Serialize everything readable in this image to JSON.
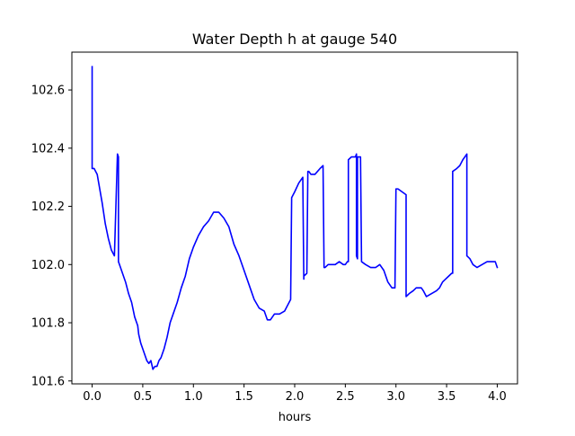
{
  "chart_data": {
    "type": "line",
    "title": "Water Depth h at gauge 540",
    "xlabel": "hours",
    "ylabel": "",
    "xlim": [
      -0.2,
      4.2
    ],
    "ylim": [
      101.59,
      102.73
    ],
    "grid": false,
    "xticks": [
      0.0,
      0.5,
      1.0,
      1.5,
      2.0,
      2.5,
      3.0,
      3.5,
      4.0
    ],
    "xtick_labels": [
      "0.0",
      "0.5",
      "1.0",
      "1.5",
      "2.0",
      "2.5",
      "3.0",
      "3.5",
      "4.0"
    ],
    "yticks": [
      101.6,
      101.8,
      102.0,
      102.2,
      102.4,
      102.6
    ],
    "ytick_labels": [
      "101.6",
      "101.8",
      "102.0",
      "102.2",
      "102.4",
      "102.6"
    ],
    "series": [
      {
        "color": "#0000ff",
        "x": [
          0.0,
          0.0,
          0.02,
          0.05,
          0.07,
          0.1,
          0.13,
          0.16,
          0.19,
          0.22,
          0.25,
          0.26,
          0.26,
          0.28,
          0.28,
          0.3,
          0.33,
          0.36,
          0.39,
          0.42,
          0.45,
          0.46,
          0.48,
          0.5,
          0.52,
          0.54,
          0.56,
          0.58,
          0.6,
          0.62,
          0.64,
          0.66,
          0.68,
          0.71,
          0.74,
          0.77,
          0.8,
          0.84,
          0.88,
          0.92,
          0.96,
          1.0,
          1.05,
          1.1,
          1.15,
          1.2,
          1.25,
          1.3,
          1.35,
          1.4,
          1.45,
          1.5,
          1.55,
          1.6,
          1.65,
          1.7,
          1.73,
          1.76,
          1.8,
          1.85,
          1.9,
          1.93,
          1.96,
          1.97,
          2.0,
          2.04,
          2.08,
          2.09,
          2.09,
          2.12,
          2.13,
          2.14,
          2.16,
          2.2,
          2.25,
          2.28,
          2.29,
          2.3,
          2.33,
          2.36,
          2.4,
          2.44,
          2.48,
          2.5,
          2.52,
          2.53,
          2.53,
          2.56,
          2.6,
          2.61,
          2.61,
          2.62,
          2.62,
          2.64,
          2.65,
          2.66,
          2.7,
          2.75,
          2.8,
          2.84,
          2.88,
          2.92,
          2.96,
          2.99,
          3.0,
          3.02,
          3.06,
          3.1,
          3.1,
          3.13,
          3.17,
          3.2,
          3.22,
          3.25,
          3.27,
          3.3,
          3.35,
          3.4,
          3.43,
          3.46,
          3.49,
          3.52,
          3.55,
          3.56,
          3.56,
          3.6,
          3.63,
          3.66,
          3.68,
          3.7,
          3.7,
          3.73,
          3.76,
          3.8,
          3.85,
          3.9,
          3.95,
          3.98,
          4.0
        ],
        "y": [
          102.68,
          102.33,
          102.33,
          102.31,
          102.27,
          102.21,
          102.14,
          102.09,
          102.05,
          102.03,
          102.38,
          102.37,
          102.01,
          101.99,
          101.99,
          101.97,
          101.94,
          101.9,
          101.87,
          101.82,
          101.79,
          101.76,
          101.73,
          101.71,
          101.69,
          101.67,
          101.66,
          101.67,
          101.64,
          101.65,
          101.65,
          101.67,
          101.68,
          101.71,
          101.75,
          101.8,
          101.83,
          101.87,
          101.92,
          101.96,
          102.02,
          102.06,
          102.1,
          102.13,
          102.15,
          102.18,
          102.18,
          102.16,
          102.13,
          102.07,
          102.03,
          101.98,
          101.93,
          101.88,
          101.85,
          101.84,
          101.81,
          101.81,
          101.83,
          101.83,
          101.84,
          101.86,
          101.88,
          102.23,
          102.25,
          102.28,
          102.3,
          101.95,
          101.96,
          101.97,
          102.32,
          102.32,
          102.31,
          102.31,
          102.33,
          102.34,
          101.99,
          101.99,
          102.0,
          102.0,
          102.0,
          102.01,
          102.0,
          102.0,
          102.01,
          102.01,
          102.36,
          102.37,
          102.37,
          102.38,
          102.03,
          102.02,
          102.37,
          102.37,
          102.37,
          102.01,
          102.0,
          101.99,
          101.99,
          102.0,
          101.98,
          101.94,
          101.92,
          101.92,
          102.26,
          102.26,
          102.25,
          102.24,
          101.89,
          101.9,
          101.91,
          101.92,
          101.92,
          101.92,
          101.91,
          101.89,
          101.9,
          101.91,
          101.92,
          101.94,
          101.95,
          101.96,
          101.97,
          101.97,
          102.32,
          102.33,
          102.34,
          102.36,
          102.37,
          102.38,
          102.03,
          102.02,
          102.0,
          101.99,
          102.0,
          102.01,
          102.01,
          102.01,
          101.99
        ]
      }
    ]
  }
}
